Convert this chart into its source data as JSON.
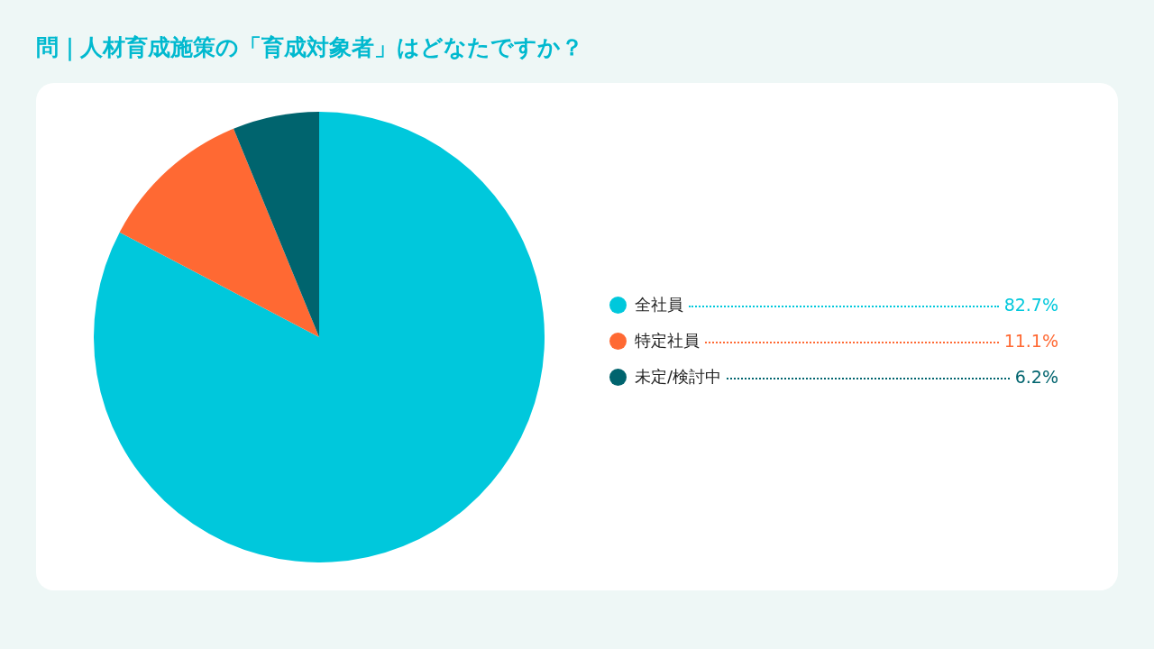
{
  "chart_data": {
    "type": "pie",
    "title": "問｜人材育成施策の「育成対象者」はどなたですか？",
    "categories": [
      "全社員",
      "特定社員",
      "未定/検討中"
    ],
    "values": [
      82.7,
      11.1,
      6.2
    ],
    "value_labels": [
      "82.7%",
      "11.1%",
      "6.2%"
    ],
    "colors": [
      "#00c8dc",
      "#ff6933",
      "#00646e"
    ],
    "legend": "right"
  }
}
